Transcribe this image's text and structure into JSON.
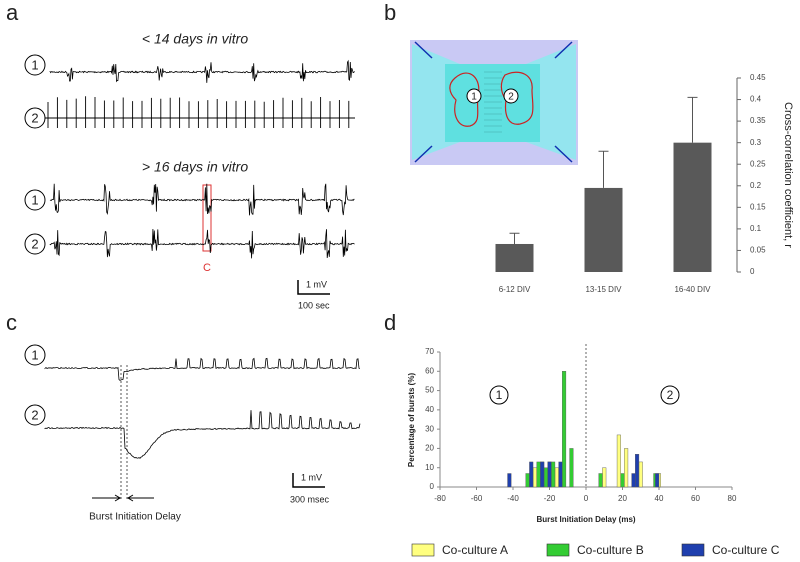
{
  "labels": {
    "panel_a": "a",
    "panel_b": "b",
    "panel_c": "c",
    "panel_d": "d",
    "title_early": "< 14 days in vitro",
    "title_late": "> 16 days in vitro",
    "trace_a": [
      "1",
      "2",
      "1",
      "2"
    ],
    "marker": "C",
    "scale_a_v": "1 mV",
    "scale_a_t": "100 sec",
    "inset": [
      "1",
      "2"
    ],
    "trace_c": [
      "1",
      "2"
    ],
    "scale_c_v": "1 mV",
    "scale_c_t": "300 msec",
    "delay": "Burst Initiation Delay"
  },
  "chart_data": [
    {
      "type": "bar",
      "categories": [
        "6-12 DIV",
        "13-15 DIV",
        "16-40 DIV"
      ],
      "values": [
        0.065,
        0.195,
        0.3
      ],
      "errors": [
        0.025,
        0.085,
        0.105
      ],
      "color": "#595959",
      "y_label": "Cross-correlation coefficient, r",
      "ylim": [
        0,
        0.45
      ],
      "yticks": [
        0,
        0.05,
        0.1,
        0.15,
        0.2,
        0.25,
        0.3,
        0.35,
        0.4,
        0.45
      ]
    },
    {
      "type": "histogram",
      "x_label": "Burst Initiation Delay (ms)",
      "y_label": "Percentage of bursts (%)",
      "annotations": [
        "1",
        "2"
      ],
      "xlim": [
        -80,
        80
      ],
      "xticks": [
        -80,
        -60,
        -40,
        -20,
        0,
        20,
        40,
        60,
        80
      ],
      "ylim": [
        0,
        70
      ],
      "yticks": [
        0,
        10,
        20,
        30,
        40,
        50,
        60,
        70
      ],
      "series": [
        {
          "name": "Co-culture A",
          "color": "#ffff80",
          "x": [
            -28,
            -24,
            -20,
            -16,
            10,
            18,
            22,
            30,
            40
          ],
          "values": [
            10,
            13,
            13,
            10,
            10,
            27,
            20,
            13,
            7
          ]
        },
        {
          "name": "Co-culture B",
          "color": "#33cc33",
          "x": [
            -32,
            -26,
            -22,
            -18,
            -12,
            -8,
            8,
            20,
            38
          ],
          "values": [
            7,
            13,
            10,
            13,
            60,
            20,
            7,
            7,
            7
          ]
        },
        {
          "name": "Co-culture C",
          "color": "#1f3fae",
          "x": [
            -42,
            -30,
            -24,
            -20,
            -14,
            26,
            28,
            39
          ],
          "values": [
            7,
            13,
            13,
            13,
            13,
            7,
            17,
            7
          ]
        }
      ]
    }
  ]
}
